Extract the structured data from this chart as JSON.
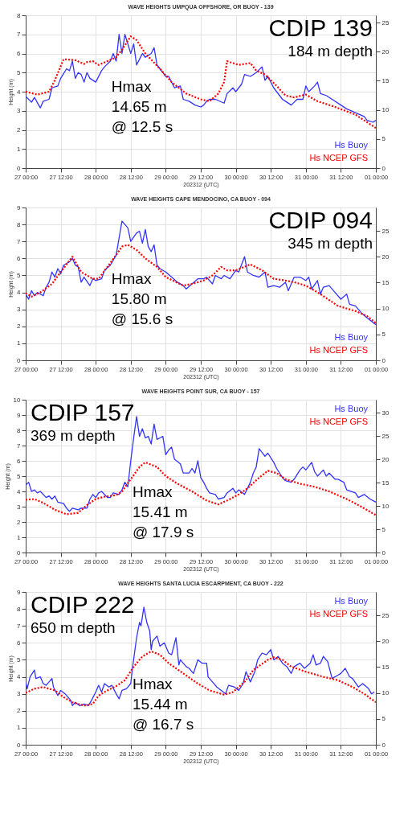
{
  "chart_data": [
    {
      "type": "line",
      "title": "WAVE HEIGHTS UMPQUA OFFSHORE, OR BUOY - 139",
      "xlabel": "202312 (UTC)",
      "ylabel": "Height (m)",
      "annotations": [
        "CDIP 139",
        "184 m depth",
        "Hmax",
        "14.65 m",
        "@ 12.5 s"
      ],
      "xlim": [
        "2023-12-27T00:00",
        "2024-01-01T00:00"
      ],
      "xticks": [
        {
          "value": "2023-12-27T00:00",
          "label": "27 00:00"
        },
        {
          "value": "2023-12-27T12:00",
          "label": "27 12:00"
        },
        {
          "value": "2023-12-28T00:00",
          "label": "28 00:00"
        },
        {
          "value": "2023-12-28T12:00",
          "label": "28 12:00"
        },
        {
          "value": "2023-12-29T00:00",
          "label": "29 00:00"
        },
        {
          "value": "2023-12-29T12:00",
          "label": "29 12:00"
        },
        {
          "value": "2023-12-30T00:00",
          "label": "30 00:00"
        },
        {
          "value": "2023-12-30T12:00",
          "label": "30 12:00"
        },
        {
          "value": "2023-12-31T00:00",
          "label": "31 00:00"
        },
        {
          "value": "2023-12-31T12:00",
          "label": "31 12:00"
        },
        {
          "value": "2024-01-01T00:00",
          "label": "01 00:00"
        }
      ],
      "ylim": [
        0,
        8
      ],
      "yticks": [
        0,
        1,
        2,
        3,
        4,
        5,
        6,
        7,
        8
      ],
      "y2lim": [
        0,
        26.25
      ],
      "y2ticks": [
        0,
        5,
        10,
        15,
        20,
        25
      ],
      "grid": true,
      "legend": "bottom right",
      "series": [
        {
          "name": "Hs Buoy",
          "color": "#3333ff",
          "line_style": "solid",
          "x": [
            "2023-12-27T00:00",
            "2023-12-27T02:00",
            "2023-12-27T03:00",
            "2023-12-27T05:00",
            "2023-12-27T06:00",
            "2023-12-27T08:00",
            "2023-12-27T09:00",
            "2023-12-27T11:00",
            "2023-12-27T12:00",
            "2023-12-27T14:00",
            "2023-12-27T15:00",
            "2023-12-27T16:00",
            "2023-12-27T17:00",
            "2023-12-27T18:00",
            "2023-12-27T19:00",
            "2023-12-27T20:00",
            "2023-12-27T21:00",
            "2023-12-27T22:00",
            "2023-12-28T00:00",
            "2023-12-28T02:00",
            "2023-12-28T03:00",
            "2023-12-28T05:00",
            "2023-12-28T06:00",
            "2023-12-28T07:00",
            "2023-12-28T08:00",
            "2023-12-28T09:00",
            "2023-12-28T10:00",
            "2023-12-28T12:00",
            "2023-12-28T13:00",
            "2023-12-28T14:00",
            "2023-12-28T15:00",
            "2023-12-28T16:00",
            "2023-12-28T17:00",
            "2023-12-28T19:00",
            "2023-12-28T20:00",
            "2023-12-28T21:00",
            "2023-12-28T22:00",
            "2023-12-29T00:00",
            "2023-12-29T01:00",
            "2023-12-29T03:00",
            "2023-12-29T05:00",
            "2023-12-29T06:00",
            "2023-12-29T08:00",
            "2023-12-29T10:00",
            "2023-12-29T12:00",
            "2023-12-29T13:00",
            "2023-12-29T14:00",
            "2023-12-29T15:00",
            "2023-12-29T17:00",
            "2023-12-29T20:00",
            "2023-12-29T21:00",
            "2023-12-29T23:00",
            "2023-12-30T00:00",
            "2023-12-30T02:00",
            "2023-12-30T03:00",
            "2023-12-30T05:00",
            "2023-12-30T07:00",
            "2023-12-30T09:00",
            "2023-12-30T10:00",
            "2023-12-30T11:00",
            "2023-12-30T13:00",
            "2023-12-30T16:00",
            "2023-12-30T17:00",
            "2023-12-30T19:00",
            "2023-12-30T21:00",
            "2023-12-30T23:00",
            "2023-12-31T00:00",
            "2023-12-31T01:00",
            "2023-12-31T03:00",
            "2023-12-31T04:00",
            "2023-12-31T05:00",
            "2023-12-31T07:00",
            "2023-12-31T09:00",
            "2023-12-31T12:00",
            "2023-12-31T14:00",
            "2023-12-31T17:00",
            "2023-12-31T20:00",
            "2023-12-31T21:00",
            "2023-12-31T23:00",
            "2024-01-01T00:00"
          ],
          "values": [
            3.75,
            3.45,
            3.7,
            3.15,
            3.5,
            3.6,
            4.2,
            4.3,
            4.7,
            5.2,
            5.1,
            5.6,
            4.7,
            5.0,
            4.9,
            4.5,
            5.0,
            4.7,
            4.5,
            5.1,
            5.3,
            5.6,
            6.0,
            5.6,
            7.0,
            6.0,
            7.0,
            6.0,
            6.5,
            5.4,
            5.7,
            6.0,
            5.8,
            6.0,
            6.3,
            5.4,
            5.2,
            4.8,
            4.8,
            4.2,
            4.3,
            3.6,
            3.5,
            3.3,
            3.2,
            3.3,
            3.5,
            3.6,
            3.6,
            3.4,
            3.9,
            4.2,
            4.0,
            4.4,
            4.9,
            4.8,
            5.0,
            5.3,
            4.6,
            4.8,
            4.2,
            3.6,
            3.5,
            3.3,
            3.6,
            3.6,
            4.3,
            4.0,
            4.3,
            4.5,
            3.9,
            3.8,
            3.6,
            3.3,
            3.1,
            2.9,
            2.7,
            2.5,
            2.4,
            2.5
          ]
        },
        {
          "name": "Hs NCEP GFS",
          "color": "#ff0000",
          "line_style": "dotted",
          "x": [
            "2023-12-27T00:00",
            "2023-12-27T04:00",
            "2023-12-27T08:00",
            "2023-12-27T10:00",
            "2023-12-27T13:00",
            "2023-12-27T17:00",
            "2023-12-27T20:00",
            "2023-12-27T21:00",
            "2023-12-27T23:00",
            "2023-12-28T01:00",
            "2023-12-28T04:00",
            "2023-12-28T07:00",
            "2023-12-28T09:00",
            "2023-12-28T12:00",
            "2023-12-28T14:00",
            "2023-12-28T17:00",
            "2023-12-28T22:00",
            "2023-12-29T02:00",
            "2023-12-29T07:00",
            "2023-12-29T12:00",
            "2023-12-29T15:00",
            "2023-12-29T18:00",
            "2023-12-29T20:00",
            "2023-12-29T21:00",
            "2023-12-29T23:00",
            "2023-12-30T01:00",
            "2023-12-30T05:00",
            "2023-12-30T07:00",
            "2023-12-30T10:00",
            "2023-12-30T14:00",
            "2023-12-30T17:00",
            "2023-12-30T20:00",
            "2023-12-31T00:00",
            "2023-12-31T04:00",
            "2023-12-31T10:00",
            "2023-12-31T17:00",
            "2024-01-01T00:00"
          ],
          "values": [
            4.0,
            3.85,
            4.0,
            4.6,
            5.7,
            5.65,
            5.45,
            5.55,
            5.6,
            5.4,
            5.6,
            5.8,
            6.2,
            6.9,
            6.7,
            6.0,
            5.2,
            4.5,
            3.9,
            3.6,
            3.5,
            3.9,
            4.5,
            5.6,
            5.5,
            5.4,
            5.5,
            5.1,
            4.9,
            4.3,
            3.8,
            3.7,
            3.85,
            3.5,
            3.2,
            2.8,
            2.1
          ]
        }
      ]
    },
    {
      "type": "line",
      "title": "WAVE HEIGHTS CAPE MENDOCINO, CA BUOY - 094",
      "xlabel": "202312 (UTC)",
      "ylabel": "Height (m)",
      "annotations": [
        "CDIP 094",
        "345 m depth",
        "Hmax",
        "15.80 m",
        "@ 15.6 s"
      ],
      "xlim": [
        "2023-12-27T00:00",
        "2024-01-01T00:00"
      ],
      "xticks": [
        {
          "value": "2023-12-27T00:00",
          "label": "27 00:00"
        },
        {
          "value": "2023-12-27T12:00",
          "label": "27 12:00"
        },
        {
          "value": "2023-12-28T00:00",
          "label": "28 00:00"
        },
        {
          "value": "2023-12-28T12:00",
          "label": "28 12:00"
        },
        {
          "value": "2023-12-29T00:00",
          "label": "29 00:00"
        },
        {
          "value": "2023-12-29T12:00",
          "label": "29 12:00"
        },
        {
          "value": "2023-12-30T00:00",
          "label": "30 00:00"
        },
        {
          "value": "2023-12-30T12:00",
          "label": "30 12:00"
        },
        {
          "value": "2023-12-31T00:00",
          "label": "31 00:00"
        },
        {
          "value": "2023-12-31T12:00",
          "label": "31 12:00"
        },
        {
          "value": "2024-01-01T00:00",
          "label": "01 00:00"
        }
      ],
      "ylim": [
        0,
        9
      ],
      "yticks": [
        0,
        1,
        2,
        3,
        4,
        5,
        6,
        7,
        8,
        9
      ],
      "y2lim": [
        0,
        29.53
      ],
      "y2ticks": [
        0,
        5,
        10,
        15,
        20,
        25
      ],
      "grid": true,
      "legend": "bottom right",
      "series": [
        {
          "name": "Hs Buoy",
          "color": "#3333ff",
          "line_style": "solid",
          "x": [
            "2023-12-27T00:00",
            "2023-12-27T01:00",
            "2023-12-27T02:00",
            "2023-12-27T03:00",
            "2023-12-27T04:00",
            "2023-12-27T06:00",
            "2023-12-27T07:00",
            "2023-12-27T08:00",
            "2023-12-27T09:00",
            "2023-12-27T10:00",
            "2023-12-27T11:00",
            "2023-12-27T12:00",
            "2023-12-27T13:00",
            "2023-12-27T15:00",
            "2023-12-27T16:00",
            "2023-12-27T17:00",
            "2023-12-27T18:00",
            "2023-12-27T19:00",
            "2023-12-27T20:00",
            "2023-12-27T22:00",
            "2023-12-27T23:00",
            "2023-12-28T00:00",
            "2023-12-28T02:00",
            "2023-12-28T03:00",
            "2023-12-28T05:00",
            "2023-12-28T07:00",
            "2023-12-28T08:00",
            "2023-12-28T09:00",
            "2023-12-28T10:00",
            "2023-12-28T11:00",
            "2023-12-28T12:00",
            "2023-12-28T14:00",
            "2023-12-28T15:00",
            "2023-12-28T16:00",
            "2023-12-28T17:00",
            "2023-12-28T18:00",
            "2023-12-28T19:00",
            "2023-12-28T20:00",
            "2023-12-28T21:00",
            "2023-12-28T22:00",
            "2023-12-29T00:00",
            "2023-12-29T02:00",
            "2023-12-29T04:00",
            "2023-12-29T06:00",
            "2023-12-29T07:00",
            "2023-12-29T09:00",
            "2023-12-29T11:00",
            "2023-12-29T13:00",
            "2023-12-29T14:00",
            "2023-12-29T16:00",
            "2023-12-29T17:00",
            "2023-12-29T19:00",
            "2023-12-29T20:00",
            "2023-12-29T22:00",
            "2023-12-30T00:00",
            "2023-12-30T01:00",
            "2023-12-30T03:00",
            "2023-12-30T04:00",
            "2023-12-30T06:00",
            "2023-12-30T08:00",
            "2023-12-30T10:00",
            "2023-12-30T11:00",
            "2023-12-30T13:00",
            "2023-12-30T15:00",
            "2023-12-30T17:00",
            "2023-12-30T18:00",
            "2023-12-30T20:00",
            "2023-12-30T22:00",
            "2023-12-31T00:00",
            "2023-12-31T01:00",
            "2023-12-31T02:00",
            "2023-12-31T04:00",
            "2023-12-31T05:00",
            "2023-12-31T06:00",
            "2023-12-31T08:00",
            "2023-12-31T10:00",
            "2023-12-31T12:00",
            "2023-12-31T14:00",
            "2023-12-31T15:00",
            "2023-12-31T17:00",
            "2023-12-31T19:00",
            "2023-12-31T21:00",
            "2024-01-01T00:00"
          ],
          "values": [
            3.9,
            3.6,
            4.1,
            3.8,
            4.0,
            3.8,
            4.3,
            4.6,
            5.2,
            4.9,
            5.4,
            5.1,
            5.6,
            5.8,
            6.0,
            5.6,
            5.5,
            4.6,
            4.9,
            4.4,
            4.8,
            4.7,
            4.8,
            5.3,
            5.6,
            6.2,
            7.2,
            8.2,
            8.0,
            7.8,
            7.0,
            7.5,
            7.6,
            6.9,
            7.7,
            6.7,
            6.4,
            6.8,
            5.6,
            5.4,
            5.2,
            4.9,
            4.6,
            4.4,
            4.2,
            4.5,
            4.8,
            4.8,
            4.9,
            4.5,
            5.0,
            4.8,
            5.0,
            4.8,
            5.3,
            5.2,
            6.1,
            5.2,
            5.0,
            4.9,
            5.2,
            4.3,
            4.4,
            4.3,
            4.6,
            4.1,
            4.9,
            4.9,
            4.7,
            4.9,
            4.2,
            4.7,
            3.9,
            4.3,
            4.4,
            4.0,
            3.6,
            3.9,
            3.3,
            3.2,
            2.8,
            2.5,
            2.1
          ]
        },
        {
          "name": "Hs NCEP GFS",
          "color": "#ff0000",
          "line_style": "dotted",
          "x": [
            "2023-12-27T00:00",
            "2023-12-27T02:00",
            "2023-12-27T05:00",
            "2023-12-27T09:00",
            "2023-12-27T12:00",
            "2023-12-27T16:00",
            "2023-12-27T19:00",
            "2023-12-27T23:00",
            "2023-12-28T01:00",
            "2023-12-28T04:00",
            "2023-12-28T07:00",
            "2023-12-28T09:00",
            "2023-12-28T11:00",
            "2023-12-28T14:00",
            "2023-12-28T17:00",
            "2023-12-28T21:00",
            "2023-12-29T00:00",
            "2023-12-29T06:00",
            "2023-12-29T09:00",
            "2023-12-29T13:00",
            "2023-12-29T16:00",
            "2023-12-29T19:00",
            "2023-12-29T21:00",
            "2023-12-30T00:00",
            "2023-12-30T05:00",
            "2023-12-30T09:00",
            "2023-12-30T13:00",
            "2023-12-30T17:00",
            "2023-12-30T20:00",
            "2023-12-31T00:00",
            "2023-12-31T05:00",
            "2023-12-31T11:00",
            "2023-12-31T17:00",
            "2023-12-31T21:00",
            "2024-01-01T00:00"
          ],
          "values": [
            3.95,
            3.75,
            4.0,
            4.5,
            5.2,
            6.1,
            5.2,
            4.8,
            4.8,
            5.5,
            6.2,
            6.7,
            6.8,
            6.5,
            6.0,
            5.5,
            4.9,
            4.4,
            4.5,
            4.7,
            5.0,
            5.5,
            5.3,
            5.3,
            5.65,
            5.3,
            4.8,
            4.7,
            4.6,
            4.4,
            3.9,
            3.2,
            2.9,
            2.6,
            2.2
          ]
        }
      ]
    },
    {
      "type": "line",
      "title": "WAVE HEIGHTS POINT SUR, CA BUOY - 157",
      "xlabel": "202312 (UTC)",
      "ylabel": "Height (m)",
      "annotations": [
        "CDIP 157",
        "369 m depth",
        "Hmax",
        "15.41 m",
        "@ 17.9 s"
      ],
      "xlim": [
        "2023-12-27T00:00",
        "2024-01-01T00:00"
      ],
      "xticks": [
        {
          "value": "2023-12-27T00:00",
          "label": "27 00:00"
        },
        {
          "value": "2023-12-27T12:00",
          "label": "27 12:00"
        },
        {
          "value": "2023-12-28T00:00",
          "label": "28 00:00"
        },
        {
          "value": "2023-12-28T12:00",
          "label": "28 12:00"
        },
        {
          "value": "2023-12-29T00:00",
          "label": "29 00:00"
        },
        {
          "value": "2023-12-29T12:00",
          "label": "29 12:00"
        },
        {
          "value": "2023-12-30T00:00",
          "label": "30 00:00"
        },
        {
          "value": "2023-12-30T12:00",
          "label": "30 12:00"
        },
        {
          "value": "2023-12-31T00:00",
          "label": "31 00:00"
        },
        {
          "value": "2023-12-31T12:00",
          "label": "31 12:00"
        },
        {
          "value": "2024-01-01T00:00",
          "label": "01 00:00"
        }
      ],
      "ylim": [
        0,
        10
      ],
      "yticks": [
        0,
        1,
        2,
        3,
        4,
        5,
        6,
        7,
        8,
        9,
        10
      ],
      "y2lim": [
        0,
        32.81
      ],
      "y2ticks": [
        0,
        5,
        10,
        15,
        20,
        25,
        30
      ],
      "grid": true,
      "legend": "top right",
      "series": [
        {
          "name": "Hs Buoy",
          "color": "#3333ff",
          "line_style": "solid",
          "x": [
            "2023-12-27T00:00",
            "2023-12-27T01:00",
            "2023-12-27T02:00",
            "2023-12-27T03:00",
            "2023-12-27T04:00",
            "2023-12-27T05:00",
            "2023-12-27T07:00",
            "2023-12-27T08:00",
            "2023-12-27T09:00",
            "2023-12-27T10:00",
            "2023-12-27T11:00",
            "2023-12-27T13:00",
            "2023-12-27T14:00",
            "2023-12-27T15:00",
            "2023-12-27T16:00",
            "2023-12-27T18:00",
            "2023-12-27T19:00",
            "2023-12-27T21:00",
            "2023-12-27T22:00",
            "2023-12-27T23:00",
            "2023-12-28T00:00",
            "2023-12-28T01:00",
            "2023-12-28T02:00",
            "2023-12-28T04:00",
            "2023-12-28T05:00",
            "2023-12-28T06:00",
            "2023-12-28T08:00",
            "2023-12-28T09:00",
            "2023-12-28T10:00",
            "2023-12-28T11:00",
            "2023-12-28T12:00",
            "2023-12-28T13:00",
            "2023-12-28T14:00",
            "2023-12-28T15:00",
            "2023-12-28T16:00",
            "2023-12-28T17:00",
            "2023-12-28T18:00",
            "2023-12-28T19:00",
            "2023-12-28T20:00",
            "2023-12-28T21:00",
            "2023-12-28T22:00",
            "2023-12-28T23:00",
            "2023-12-29T00:00",
            "2023-12-29T01:00",
            "2023-12-29T02:00",
            "2023-12-29T03:00",
            "2023-12-29T05:00",
            "2023-12-29T06:00",
            "2023-12-29T08:00",
            "2023-12-29T09:00",
            "2023-12-29T10:00",
            "2023-12-29T11:00",
            "2023-12-29T12:00",
            "2023-12-29T13:00",
            "2023-12-29T14:00",
            "2023-12-29T15:00",
            "2023-12-29T17:00",
            "2023-12-29T18:00",
            "2023-12-29T20:00",
            "2023-12-29T21:00",
            "2023-12-29T23:00",
            "2023-12-30T00:00",
            "2023-12-30T01:00",
            "2023-12-30T03:00",
            "2023-12-30T04:00",
            "2023-12-30T05:00",
            "2023-12-30T06:00",
            "2023-12-30T07:00",
            "2023-12-30T08:00",
            "2023-12-30T10:00",
            "2023-12-30T11:00",
            "2023-12-30T13:00",
            "2023-12-30T14:00",
            "2023-12-30T16:00",
            "2023-12-30T17:00",
            "2023-12-30T19:00",
            "2023-12-30T20:00",
            "2023-12-30T22:00",
            "2023-12-30T23:00",
            "2023-12-31T00:00",
            "2023-12-31T02:00",
            "2023-12-31T03:00",
            "2023-12-31T04:00",
            "2023-12-31T06:00",
            "2023-12-31T07:00",
            "2023-12-31T08:00",
            "2023-12-31T10:00",
            "2023-12-31T11:00",
            "2023-12-31T13:00",
            "2023-12-31T14:00",
            "2023-12-31T17:00",
            "2023-12-31T18:00",
            "2023-12-31T20:00",
            "2023-12-31T22:00",
            "2024-01-01T00:00"
          ],
          "values": [
            4.4,
            4.6,
            4.0,
            4.1,
            3.9,
            4.0,
            3.6,
            3.7,
            3.5,
            3.7,
            3.3,
            3.2,
            2.9,
            2.7,
            2.9,
            2.8,
            2.9,
            2.9,
            3.5,
            3.8,
            3.6,
            3.9,
            4.0,
            3.6,
            3.6,
            3.9,
            3.8,
            4.1,
            4.6,
            4.3,
            6.0,
            7.5,
            8.9,
            7.6,
            8.1,
            7.5,
            7.6,
            7.1,
            8.4,
            7.4,
            7.5,
            7.6,
            6.4,
            6.7,
            6.9,
            6.1,
            5.8,
            5.2,
            5.2,
            5.5,
            5.2,
            6.0,
            4.9,
            4.6,
            4.2,
            3.9,
            3.8,
            3.5,
            3.6,
            3.9,
            4.2,
            3.9,
            4.1,
            3.8,
            4.2,
            4.6,
            5.2,
            5.6,
            6.8,
            6.3,
            6.5,
            5.9,
            5.5,
            4.9,
            4.7,
            4.6,
            4.8,
            5.4,
            5.6,
            5.4,
            5.9,
            5.3,
            5.0,
            5.4,
            5.0,
            5.2,
            4.8,
            4.8,
            4.6,
            4.1,
            3.9,
            3.6,
            3.8,
            3.5,
            3.3
          ]
        },
        {
          "name": "Hs NCEP GFS",
          "color": "#ff0000",
          "line_style": "dotted",
          "x": [
            "2023-12-27T00:00",
            "2023-12-27T03:00",
            "2023-12-27T06:00",
            "2023-12-27T10:00",
            "2023-12-27T14:00",
            "2023-12-27T18:00",
            "2023-12-27T21:00",
            "2023-12-28T00:00",
            "2023-12-28T03:00",
            "2023-12-28T07:00",
            "2023-12-28T09:00",
            "2023-12-28T12:00",
            "2023-12-28T15:00",
            "2023-12-28T17:00",
            "2023-12-28T21:00",
            "2023-12-29T00:00",
            "2023-12-29T04:00",
            "2023-12-29T09:00",
            "2023-12-29T14:00",
            "2023-12-29T18:00",
            "2023-12-29T21:00",
            "2023-12-30T01:00",
            "2023-12-30T04:00",
            "2023-12-30T08:00",
            "2023-12-30T11:00",
            "2023-12-30T14:00",
            "2023-12-30T17:00",
            "2023-12-30T22:00",
            "2023-12-31T03:00",
            "2023-12-31T08:00",
            "2023-12-31T14:00",
            "2023-12-31T19:00",
            "2024-01-01T00:00"
          ],
          "values": [
            3.45,
            3.5,
            3.25,
            2.8,
            2.5,
            2.6,
            3.1,
            3.5,
            3.65,
            3.75,
            4.0,
            4.8,
            5.6,
            5.9,
            5.6,
            5.0,
            4.5,
            4.0,
            3.4,
            3.15,
            3.4,
            3.8,
            4.2,
            4.9,
            5.35,
            5.2,
            4.8,
            4.5,
            4.3,
            4.0,
            3.5,
            3.0,
            2.45
          ]
        }
      ]
    },
    {
      "type": "line",
      "title": "WAVE HEIGHTS SANTA LUCIA ESCARPMENT, CA BUOY - 222",
      "xlabel": "202312 (UTC)",
      "ylabel": "Height (m)",
      "annotations": [
        "CDIP 222",
        "650 m depth",
        "Hmax",
        "15.44 m",
        "@ 16.7 s"
      ],
      "xlim": [
        "2023-12-27T00:00",
        "2024-01-01T00:00"
      ],
      "xticks": [
        {
          "value": "2023-12-27T00:00",
          "label": "27 00:00"
        },
        {
          "value": "2023-12-27T12:00",
          "label": "27 12:00"
        },
        {
          "value": "2023-12-28T00:00",
          "label": "28 00:00"
        },
        {
          "value": "2023-12-28T12:00",
          "label": "28 12:00"
        },
        {
          "value": "2023-12-29T00:00",
          "label": "29 00:00"
        },
        {
          "value": "2023-12-29T12:00",
          "label": "29 12:00"
        },
        {
          "value": "2023-12-30T00:00",
          "label": "30 00:00"
        },
        {
          "value": "2023-12-30T12:00",
          "label": "30 12:00"
        },
        {
          "value": "2023-12-31T00:00",
          "label": "31 00:00"
        },
        {
          "value": "2023-12-31T12:00",
          "label": "31 12:00"
        },
        {
          "value": "2024-01-01T00:00",
          "label": "01 00:00"
        }
      ],
      "ylim": [
        0,
        9
      ],
      "yticks": [
        0,
        1,
        2,
        3,
        4,
        5,
        6,
        7,
        8,
        9
      ],
      "y2lim": [
        0,
        29.53
      ],
      "y2ticks": [
        0,
        5,
        10,
        15,
        20,
        25
      ],
      "grid": true,
      "legend": "top right",
      "series": [
        {
          "name": "Hs Buoy",
          "color": "#3333ff",
          "line_style": "solid",
          "x": [
            "2023-12-27T00:00",
            "2023-12-27T00:30",
            "2023-12-27T01:30",
            "2023-12-27T03:00",
            "2023-12-27T03:30",
            "2023-12-27T05:00",
            "2023-12-27T06:00",
            "2023-12-27T07:00",
            "2023-12-27T09:00",
            "2023-12-27T09:30",
            "2023-12-27T11:00",
            "2023-12-27T12:00",
            "2023-12-27T13:30",
            "2023-12-27T15:30",
            "2023-12-27T16:00",
            "2023-12-27T17:00",
            "2023-12-27T18:30",
            "2023-12-27T20:00",
            "2023-12-27T21:30",
            "2023-12-27T22:30",
            "2023-12-28T00:00",
            "2023-12-28T01:00",
            "2023-12-28T02:00",
            "2023-12-28T03:00",
            "2023-12-28T04:30",
            "2023-12-28T05:30",
            "2023-12-28T07:00",
            "2023-12-28T08:00",
            "2023-12-28T09:00",
            "2023-12-28T10:30",
            "2023-12-28T12:00",
            "2023-12-28T12:30",
            "2023-12-28T14:00",
            "2023-12-28T15:00",
            "2023-12-28T15:30",
            "2023-12-28T16:30",
            "2023-12-28T17:30",
            "2023-12-28T18:30",
            "2023-12-28T19:00",
            "2023-12-28T19:30",
            "2023-12-28T21:00",
            "2023-12-28T22:00",
            "2023-12-28T23:30",
            "2023-12-29T01:00",
            "2023-12-29T02:00",
            "2023-12-29T03:30",
            "2023-12-29T04:30",
            "2023-12-29T05:00",
            "2023-12-29T07:00",
            "2023-12-29T08:00",
            "2023-12-29T09:30",
            "2023-12-29T11:00",
            "2023-12-29T12:30",
            "2023-12-29T14:00",
            "2023-12-29T14:30",
            "2023-12-29T16:00",
            "2023-12-29T17:30",
            "2023-12-29T19:00",
            "2023-12-29T20:30",
            "2023-12-29T21:30",
            "2023-12-29T23:30",
            "2023-12-30T01:00",
            "2023-12-30T02:30",
            "2023-12-30T03:30",
            "2023-12-30T05:00",
            "2023-12-30T06:30",
            "2023-12-30T07:30",
            "2023-12-30T09:00",
            "2023-12-30T10:30",
            "2023-12-30T12:00",
            "2023-12-30T13:00",
            "2023-12-30T14:30",
            "2023-12-30T16:00",
            "2023-12-30T17:30",
            "2023-12-30T19:00",
            "2023-12-30T20:00",
            "2023-12-30T22:00",
            "2023-12-30T23:30",
            "2023-12-31T01:30",
            "2023-12-31T02:30",
            "2023-12-31T03:30",
            "2023-12-31T05:00",
            "2023-12-31T06:00",
            "2023-12-31T07:30",
            "2023-12-31T09:00",
            "2023-12-31T11:00",
            "2023-12-31T12:00",
            "2023-12-31T13:30",
            "2023-12-31T15:00",
            "2023-12-31T16:00",
            "2023-12-31T18:00",
            "2023-12-31T19:30",
            "2023-12-31T21:30",
            "2023-12-31T22:30",
            "2023-12-31T23:30"
          ],
          "values": [
            3.7,
            3.3,
            4.0,
            4.4,
            3.9,
            4.0,
            3.6,
            3.5,
            3.9,
            3.4,
            2.9,
            3.2,
            3.0,
            2.6,
            2.3,
            2.5,
            2.3,
            2.4,
            2.3,
            2.6,
            3.1,
            3.5,
            3.1,
            3.6,
            3.4,
            3.5,
            3.0,
            2.7,
            3.2,
            3.3,
            3.6,
            4.4,
            6.3,
            7.2,
            7.0,
            8.1,
            7.2,
            6.7,
            5.6,
            6.1,
            6.4,
            5.8,
            6.0,
            5.4,
            5.3,
            6.3,
            4.7,
            5.0,
            4.6,
            4.5,
            4.2,
            5.0,
            4.8,
            4.8,
            4.0,
            3.7,
            3.4,
            3.2,
            3.0,
            3.5,
            3.4,
            3.2,
            3.6,
            4.3,
            3.7,
            4.3,
            5.0,
            5.4,
            5.3,
            5.6,
            5.0,
            5.2,
            4.8,
            4.6,
            4.2,
            4.6,
            4.8,
            4.5,
            4.8,
            5.3,
            4.7,
            4.8,
            5.2,
            4.9,
            3.9,
            4.1,
            4.2,
            4.5,
            4.0,
            3.9,
            3.4,
            3.6,
            3.3,
            3.0,
            3.1
          ]
        },
        {
          "name": "Hs NCEP GFS",
          "color": "#ff0000",
          "line_style": "dotted",
          "x": [
            "2023-12-27T00:00",
            "2023-12-27T03:00",
            "2023-12-27T06:00",
            "2023-12-27T10:00",
            "2023-12-27T13:00",
            "2023-12-27T16:00",
            "2023-12-27T20:00",
            "2023-12-27T23:00",
            "2023-12-28T01:00",
            "2023-12-28T04:00",
            "2023-12-28T07:00",
            "2023-12-28T10:00",
            "2023-12-28T13:00",
            "2023-12-28T16:00",
            "2023-12-28T19:00",
            "2023-12-28T22:00",
            "2023-12-29T01:00",
            "2023-12-29T06:00",
            "2023-12-29T11:00",
            "2023-12-29T15:00",
            "2023-12-29T20:00",
            "2023-12-29T23:00",
            "2023-12-30T03:00",
            "2023-12-30T06:00",
            "2023-12-30T11:00",
            "2023-12-30T13:00",
            "2023-12-30T16:00",
            "2023-12-30T19:00",
            "2023-12-31T00:00",
            "2023-12-31T06:00",
            "2023-12-31T11:00",
            "2023-12-31T16:00",
            "2023-12-31T20:00",
            "2024-01-01T00:00"
          ],
          "values": [
            3.05,
            3.3,
            3.4,
            3.2,
            2.8,
            2.5,
            2.3,
            2.4,
            2.9,
            3.2,
            3.45,
            3.8,
            4.6,
            5.2,
            5.5,
            5.3,
            4.8,
            4.2,
            3.6,
            3.2,
            2.95,
            3.1,
            3.7,
            4.4,
            5.0,
            5.15,
            5.0,
            4.6,
            4.3,
            4.0,
            3.8,
            3.4,
            3.0,
            2.5
          ]
        }
      ]
    }
  ]
}
